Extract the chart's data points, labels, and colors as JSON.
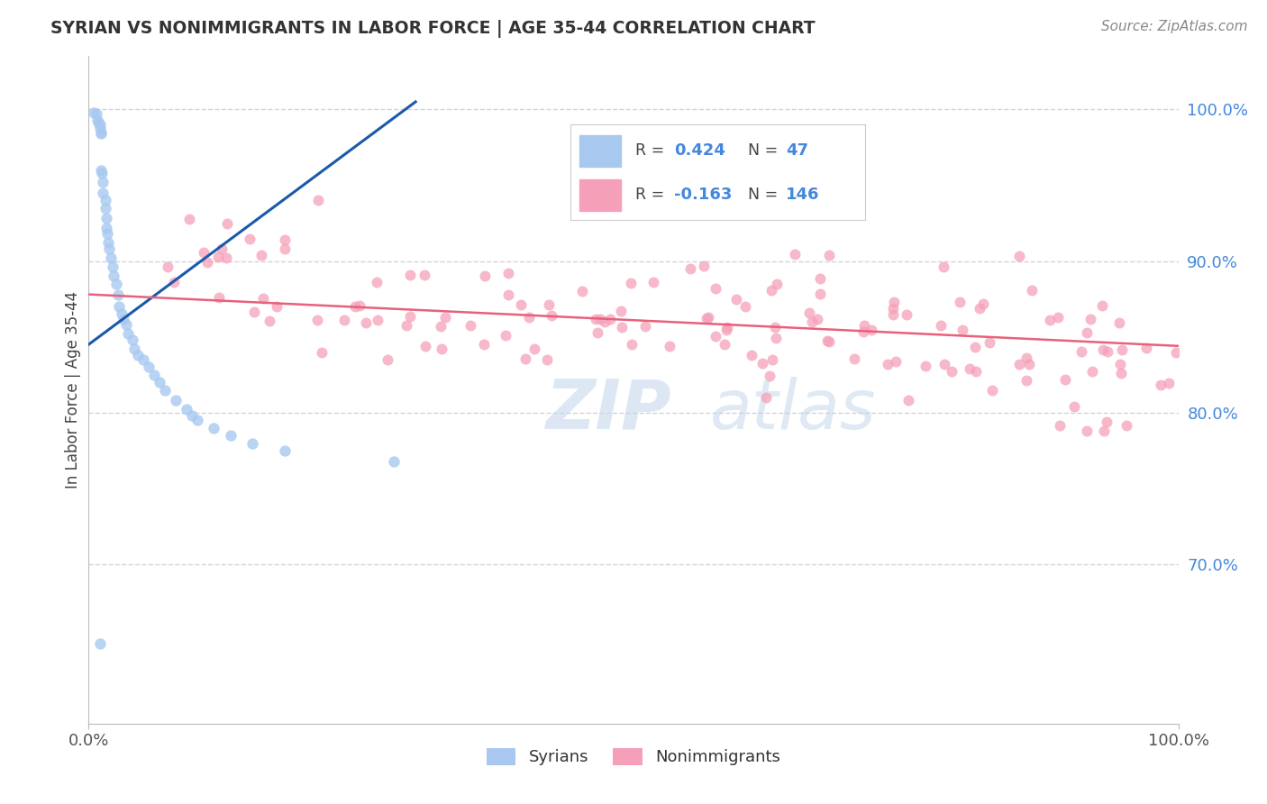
{
  "title": "SYRIAN VS NONIMMIGRANTS IN LABOR FORCE | AGE 35-44 CORRELATION CHART",
  "source": "Source: ZipAtlas.com",
  "ylabel": "In Labor Force | Age 35-44",
  "xlim": [
    0.0,
    1.0
  ],
  "ylim": [
    0.595,
    1.035
  ],
  "y_ticks_right": [
    1.0,
    0.9,
    0.8,
    0.7
  ],
  "y_tick_labels_right": [
    "100.0%",
    "90.0%",
    "80.0%",
    "70.0%"
  ],
  "legend_r_syrian": "0.424",
  "legend_n_syrian": "47",
  "legend_r_nonimm": "-0.163",
  "legend_n_nonimm": "146",
  "syrian_color": "#a8c8f0",
  "nonimm_color": "#f5a0b8",
  "syrian_line_color": "#1a5aab",
  "nonimm_line_color": "#e8607a",
  "grid_color": "#c8c8d8",
  "background_color": "#ffffff",
  "watermark_zip": "ZIP",
  "watermark_atlas": "atlas",
  "syrians_label": "Syrians",
  "nonimm_label": "Nonimmigrants",
  "syr_line_x0": 0.0,
  "syr_line_y0": 0.845,
  "syr_line_x1": 0.3,
  "syr_line_y1": 1.005,
  "nonimm_line_x0": 0.0,
  "nonimm_line_y0": 0.878,
  "nonimm_line_x1": 1.0,
  "nonimm_line_y1": 0.844
}
